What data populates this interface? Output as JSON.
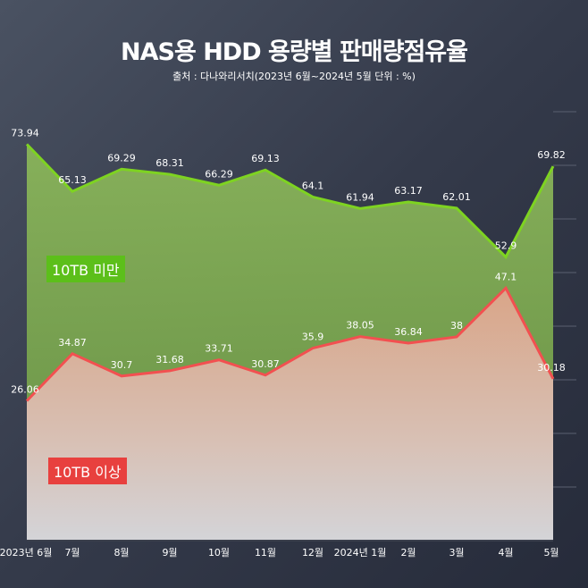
{
  "chart_data": {
    "type": "area",
    "title": "NAS용 HDD 용량별 판매량점유율",
    "subtitle": "출처 : 다나와리서치(2023년 6월~2024년 5월 단위 : %)",
    "categories": [
      "2023년 6월",
      "7월",
      "8월",
      "9월",
      "10월",
      "11월",
      "12월",
      "2024년 1월",
      "2월",
      "3월",
      "4월",
      "5월"
    ],
    "series": [
      {
        "name": "10TB 미만",
        "color": "#7ed321",
        "values": [
          73.94,
          65.13,
          69.29,
          68.31,
          66.29,
          69.13,
          64.1,
          61.94,
          63.17,
          62.01,
          52.9,
          69.82
        ]
      },
      {
        "name": "10TB 이상",
        "color": "#f25050",
        "values": [
          26.06,
          34.87,
          30.7,
          31.68,
          33.71,
          30.87,
          35.9,
          38.05,
          36.84,
          38,
          47.1,
          30.18
        ]
      }
    ],
    "ylim": [
      0,
      100
    ],
    "legend": "inside-left"
  }
}
